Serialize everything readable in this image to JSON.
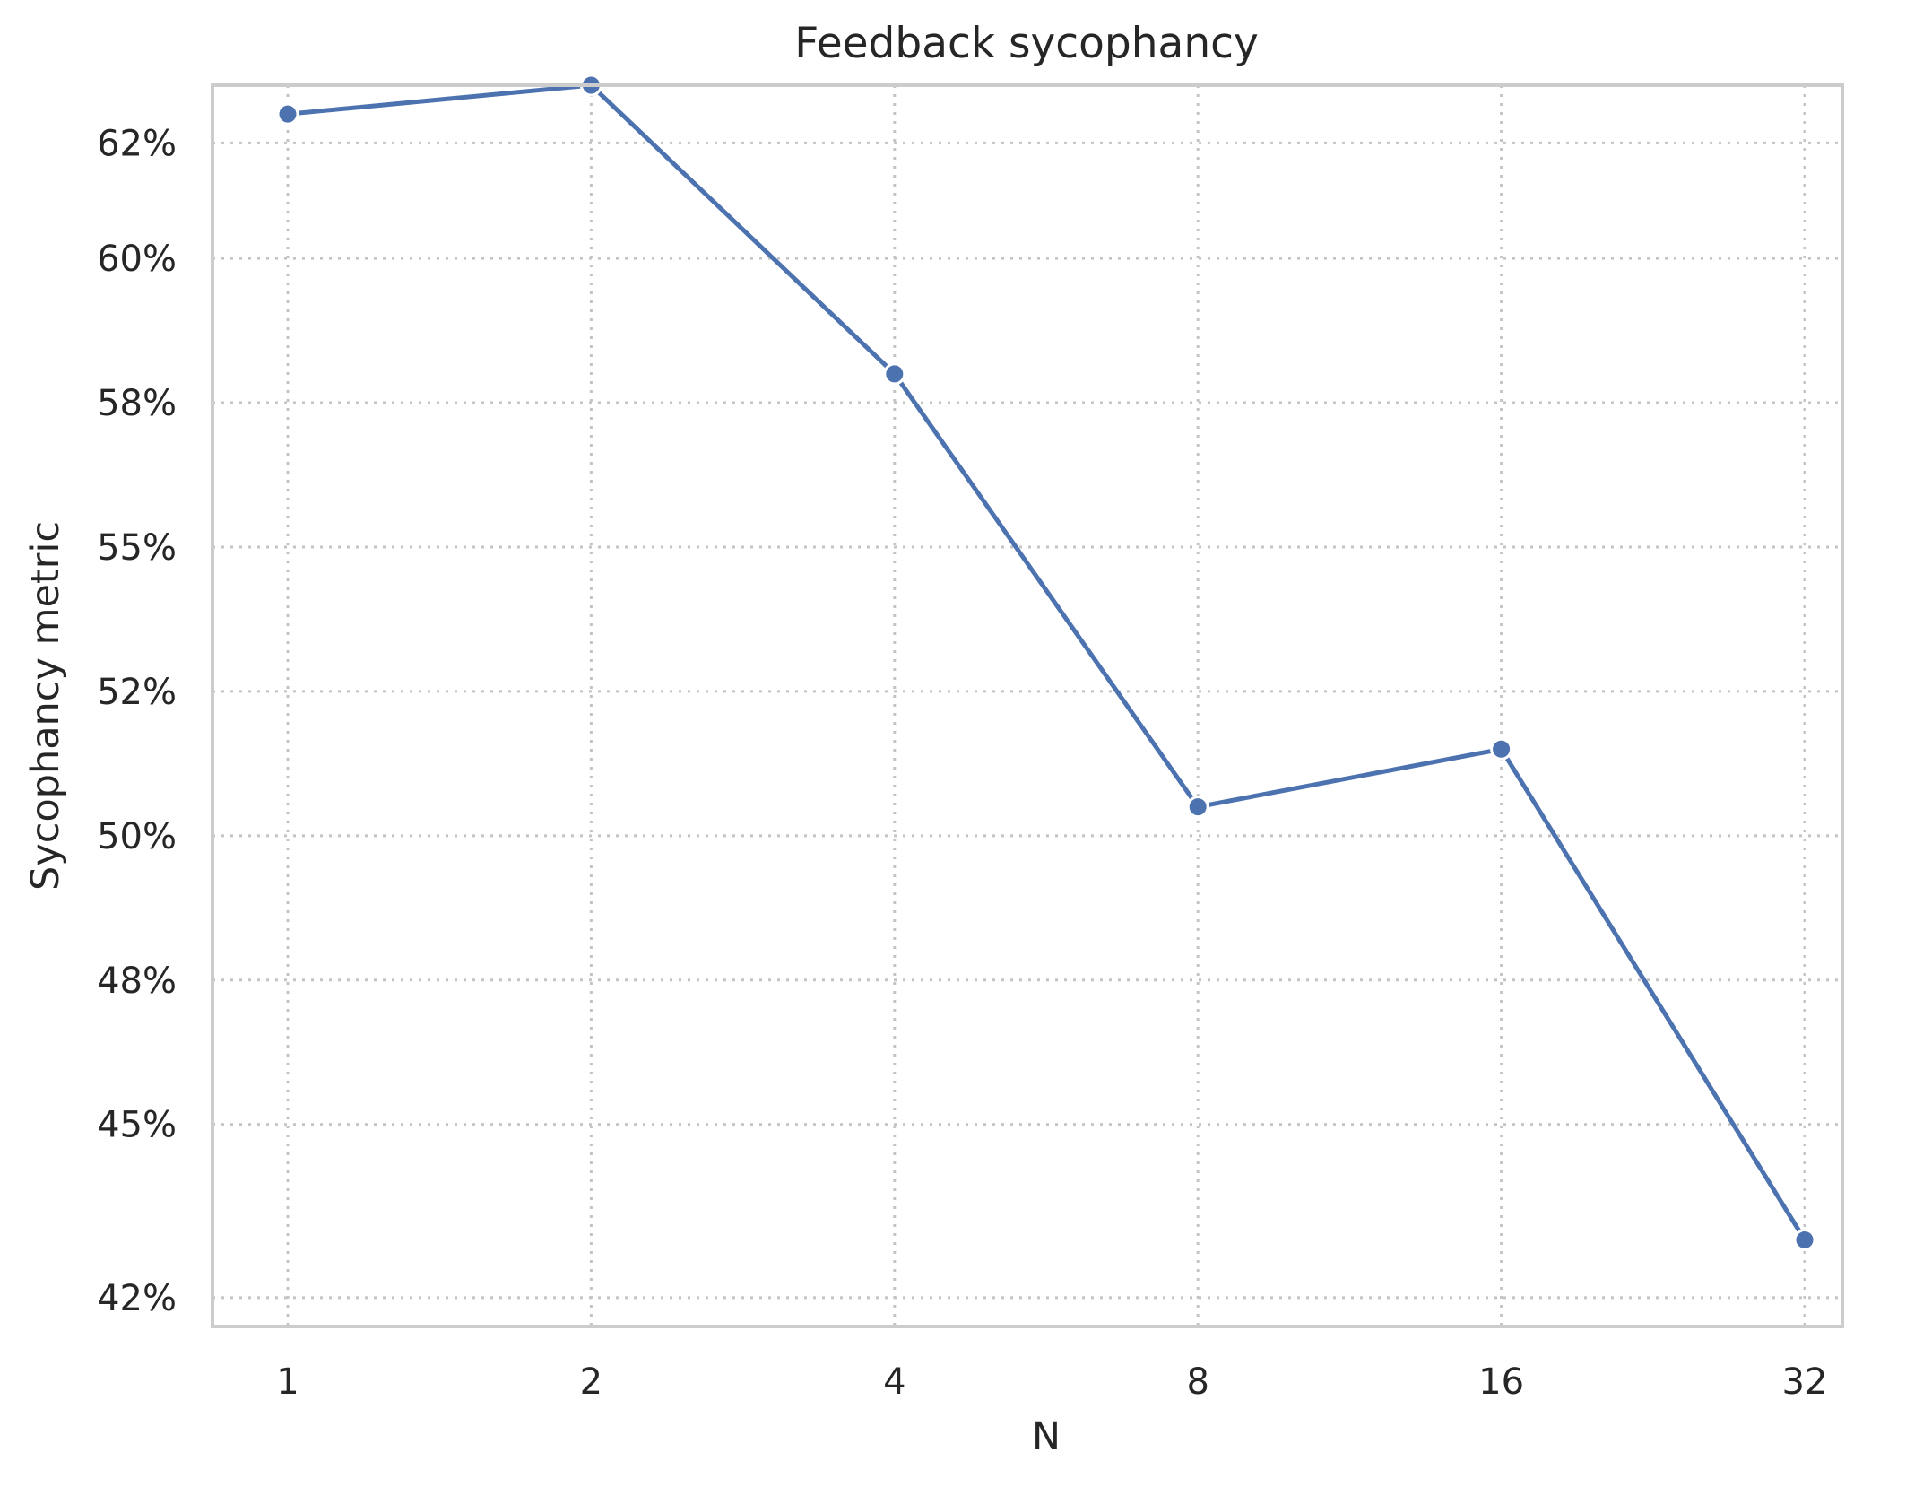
{
  "chart_data": {
    "type": "line",
    "title": "Feedback sycophancy",
    "xlabel": "N",
    "ylabel": "Sycophancy metric",
    "x_scale": "log2",
    "x_ticks": [
      1,
      2,
      4,
      8,
      16,
      32
    ],
    "x_tick_labels": [
      "1",
      "2",
      "4",
      "8",
      "16",
      "32"
    ],
    "y_ticks": [
      0.42,
      0.45,
      0.475,
      0.5,
      0.525,
      0.55,
      0.575,
      0.6,
      0.62
    ],
    "y_tick_labels": [
      "42%",
      "45%",
      "48%",
      "50%",
      "52%",
      "55%",
      "58%",
      "60%",
      "62%"
    ],
    "ylim": [
      0.415,
      0.63
    ],
    "grid": true,
    "series": [
      {
        "color": "#4c72b0",
        "x": [
          1,
          2,
          4,
          8,
          16,
          32
        ],
        "values": [
          0.625,
          0.63,
          0.58,
          0.505,
          0.515,
          0.43
        ]
      }
    ]
  }
}
